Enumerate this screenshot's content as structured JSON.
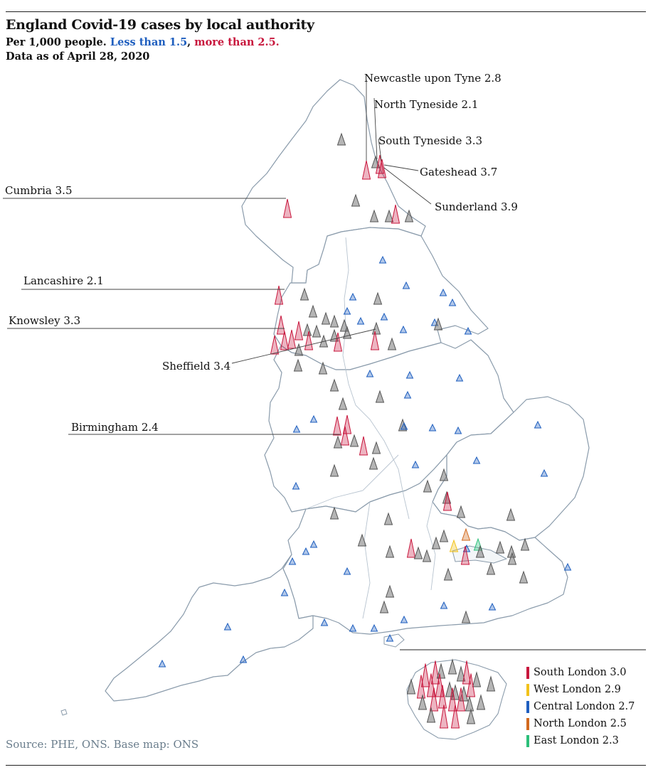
{
  "header": {
    "title": "England Covid-19 cases by local authority",
    "subtitle_prefix": "Per 1,000 people.",
    "low_text": "Less than 1.5",
    "comma": ",",
    "high_text": "more than 2.5.",
    "date_text": "Data as of April 28, 2020"
  },
  "source": "Source: PHE, ONS. Base map: ONS",
  "colors": {
    "high": "#c8173d",
    "low": "#1f5fbf",
    "mid": "#555555",
    "outline": "#8a9bab",
    "south_london": "#c8173d",
    "west_london": "#f2c21b",
    "central_london": "#1f5fbf",
    "north_london": "#d2691e",
    "east_london": "#2cbf7a"
  },
  "map_labels": [
    {
      "id": "newcastle",
      "text": "Newcastle upon Tyne 2.8"
    },
    {
      "id": "north-tyneside",
      "text": "North Tyneside 2.1"
    },
    {
      "id": "south-tyneside",
      "text": "South Tyneside 3.3"
    },
    {
      "id": "gateshead",
      "text": "Gateshead 3.7"
    },
    {
      "id": "sunderland",
      "text": "Sunderland 3.9"
    },
    {
      "id": "cumbria",
      "text": "Cumbria 3.5"
    },
    {
      "id": "lancashire",
      "text": "Lancashire 2.1"
    },
    {
      "id": "knowsley",
      "text": "Knowsley 3.3"
    },
    {
      "id": "sheffield",
      "text": "Sheffield 3.4"
    },
    {
      "id": "birmingham",
      "text": "Birmingham 2.4"
    }
  ],
  "legend": [
    {
      "text": "South London 3.0",
      "color": "#c8173d"
    },
    {
      "text": "West London 2.9",
      "color": "#f2c21b"
    },
    {
      "text": "Central London 2.7",
      "color": "#1f5fbf"
    },
    {
      "text": "North London 2.5",
      "color": "#d2691e"
    },
    {
      "text": "East London 2.3",
      "color": "#2cbf7a"
    }
  ]
}
